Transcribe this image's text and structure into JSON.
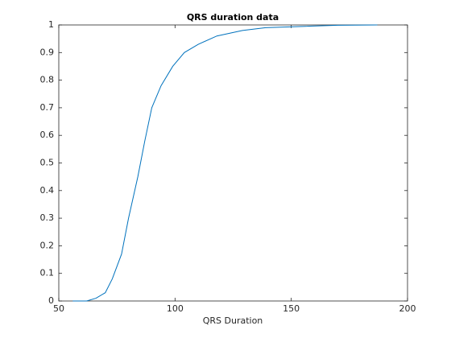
{
  "chart_data": {
    "type": "line",
    "title": "QRS duration data",
    "x_label": "QRS Duration",
    "x": [
      56,
      62,
      66,
      70,
      73,
      77,
      80,
      84,
      87,
      90,
      94,
      99,
      104,
      110,
      118,
      129,
      139,
      156,
      170,
      187
    ],
    "series": [
      {
        "color": "#0072bd",
        "values": [
          0,
          0,
          0.01,
          0.03,
          0.08,
          0.17,
          0.3,
          0.45,
          0.58,
          0.7,
          0.78,
          0.85,
          0.9,
          0.93,
          0.96,
          0.98,
          0.99,
          0.995,
          0.999,
          1
        ]
      }
    ],
    "xlim": [
      50,
      200
    ],
    "xticks": [
      50,
      100,
      150,
      200
    ],
    "ylim": [
      0,
      1
    ],
    "yticks": [
      0,
      0.1,
      0.2,
      0.3,
      0.4,
      0.5,
      0.6,
      0.7,
      0.8,
      0.9,
      1
    ],
    "grid": false
  }
}
